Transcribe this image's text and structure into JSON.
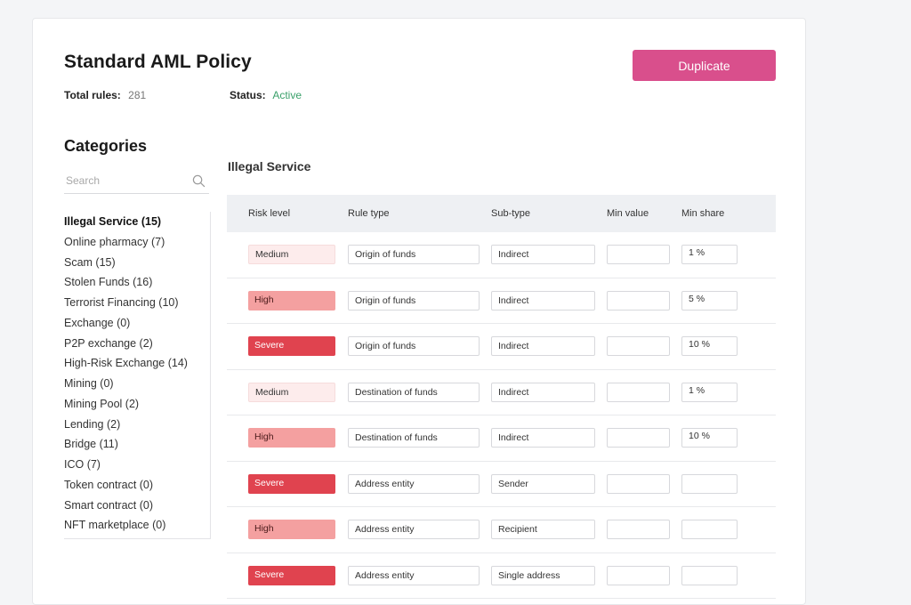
{
  "policy": {
    "title": "Standard AML Policy",
    "duplicate_label": "Duplicate",
    "total_rules_label": "Total rules:",
    "total_rules_value": "281",
    "status_label": "Status:",
    "status_value": "Active",
    "status_color": "#3aa06a",
    "accent_color": "#d94f8c"
  },
  "categories": {
    "title": "Categories",
    "search_placeholder": "Search",
    "search_icon": "search-icon",
    "items": [
      {
        "label": "Illegal Service (15)",
        "active": true
      },
      {
        "label": "Online pharmacy (7)"
      },
      {
        "label": "Scam (15)"
      },
      {
        "label": "Stolen Funds (16)"
      },
      {
        "label": "Terrorist Financing (10)"
      },
      {
        "label": "Exchange (0)"
      },
      {
        "label": "P2P exchange (2)"
      },
      {
        "label": "High-Risk Exchange (14)"
      },
      {
        "label": "Mining (0)"
      },
      {
        "label": "Mining Pool (2)"
      },
      {
        "label": "Lending (2)"
      },
      {
        "label": "Bridge (11)"
      },
      {
        "label": "ICO (7)"
      },
      {
        "label": "Token contract (0)"
      },
      {
        "label": "Smart contract (0)"
      },
      {
        "label": "NFT marketplace (0)"
      }
    ]
  },
  "section": {
    "title": "Illegal Service",
    "columns": [
      "Risk level",
      "Rule type",
      "Sub-type",
      "Min value",
      "Min share"
    ],
    "risk_colors": {
      "Medium": "#fdecec",
      "High": "#f4a0a0",
      "Severe": "#e0434f"
    },
    "rows": [
      {
        "risk": "Medium",
        "rule_type": "Origin of funds",
        "sub_type": "Indirect",
        "min_value": "",
        "min_share": "1 %"
      },
      {
        "risk": "High",
        "rule_type": "Origin of funds",
        "sub_type": "Indirect",
        "min_value": "",
        "min_share": "5 %"
      },
      {
        "risk": "Severe",
        "rule_type": "Origin of funds",
        "sub_type": "Indirect",
        "min_value": "",
        "min_share": "10 %"
      },
      {
        "risk": "Medium",
        "rule_type": "Destination of funds",
        "sub_type": "Indirect",
        "min_value": "",
        "min_share": "1 %"
      },
      {
        "risk": "High",
        "rule_type": "Destination of funds",
        "sub_type": "Indirect",
        "min_value": "",
        "min_share": "10 %"
      },
      {
        "risk": "Severe",
        "rule_type": "Address entity",
        "sub_type": "Sender",
        "min_value": "",
        "min_share": ""
      },
      {
        "risk": "High",
        "rule_type": "Address entity",
        "sub_type": "Recipient",
        "min_value": "",
        "min_share": ""
      },
      {
        "risk": "Severe",
        "rule_type": "Address entity",
        "sub_type": "Single address",
        "min_value": "",
        "min_share": ""
      }
    ]
  }
}
